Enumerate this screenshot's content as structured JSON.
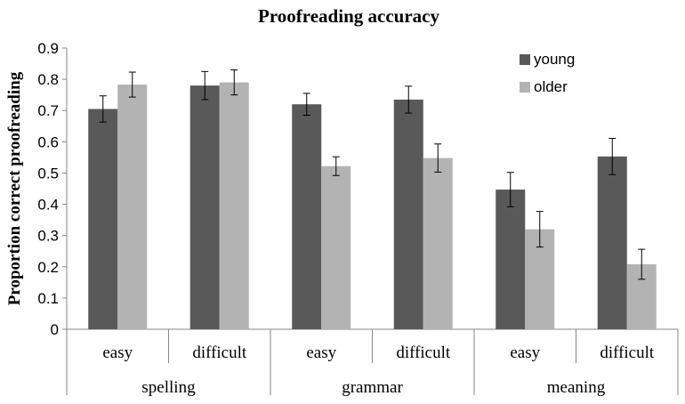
{
  "chart_data": {
    "type": "bar",
    "title": "Proofreading accuracy",
    "ylabel": "Proportion correct proofreading",
    "xlabel": "",
    "ylim": [
      0,
      0.9
    ],
    "yticks": [
      "0",
      "0.1",
      "0.2",
      "0.3",
      "0.4",
      "0.5",
      "0.6",
      "0.7",
      "0.8",
      "0.9"
    ],
    "grid": false,
    "legend_position": "top-right",
    "categories": [
      "easy",
      "difficult",
      "easy",
      "difficult",
      "easy",
      "difficult"
    ],
    "groups": [
      {
        "label": "spelling",
        "categories": [
          "easy",
          "difficult"
        ]
      },
      {
        "label": "grammar",
        "categories": [
          "easy",
          "difficult"
        ]
      },
      {
        "label": "meaning",
        "categories": [
          "easy",
          "difficult"
        ]
      }
    ],
    "series": [
      {
        "name": "young",
        "color": "#595959",
        "values": [
          0.705,
          0.78,
          0.72,
          0.735,
          0.447,
          0.553
        ],
        "errors": [
          0.042,
          0.045,
          0.035,
          0.043,
          0.055,
          0.058
        ]
      },
      {
        "name": "older",
        "color": "#b3b3b3",
        "values": [
          0.783,
          0.79,
          0.522,
          0.548,
          0.32,
          0.208
        ],
        "errors": [
          0.04,
          0.04,
          0.03,
          0.045,
          0.057,
          0.048
        ]
      }
    ]
  }
}
